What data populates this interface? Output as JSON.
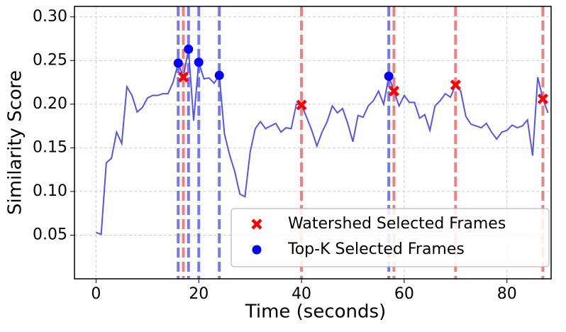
{
  "chart_data": {
    "type": "line",
    "xlabel": "Time (seconds)",
    "ylabel": "Similarity Score",
    "x": [
      0,
      1,
      2,
      3,
      4,
      5,
      6,
      7,
      8,
      9,
      10,
      11,
      12,
      13,
      14,
      15,
      16,
      17,
      18,
      19,
      20,
      21,
      22,
      23,
      24,
      25,
      26,
      27,
      28,
      29,
      30,
      31,
      32,
      33,
      34,
      35,
      36,
      37,
      38,
      39,
      40,
      41,
      42,
      43,
      44,
      45,
      46,
      47,
      48,
      49,
      50,
      51,
      52,
      53,
      54,
      55,
      56,
      57,
      58,
      59,
      60,
      61,
      62,
      63,
      64,
      65,
      66,
      67,
      68,
      69,
      70,
      71,
      72,
      73,
      74,
      75,
      76,
      77,
      78,
      79,
      80,
      81,
      82,
      83,
      84,
      85,
      86,
      87,
      88
    ],
    "series": [
      {
        "color": "#5555ee",
        "values": [
          0.053,
          0.051,
          0.133,
          0.138,
          0.168,
          0.155,
          0.22,
          0.21,
          0.191,
          0.196,
          0.207,
          0.21,
          0.21,
          0.212,
          0.212,
          0.225,
          0.247,
          0.231,
          0.263,
          0.181,
          0.248,
          0.229,
          0.23,
          0.224,
          0.233,
          0.166,
          0.142,
          0.123,
          0.097,
          0.094,
          0.145,
          0.172,
          0.18,
          0.172,
          0.175,
          0.178,
          0.168,
          0.173,
          0.172,
          0.2,
          0.199,
          0.185,
          0.17,
          0.152,
          0.168,
          0.18,
          0.198,
          0.19,
          0.195,
          0.178,
          0.157,
          0.187,
          0.185,
          0.198,
          0.204,
          0.215,
          0.2,
          0.232,
          0.215,
          0.198,
          0.21,
          0.202,
          0.202,
          0.184,
          0.188,
          0.17,
          0.198,
          0.204,
          0.212,
          0.208,
          0.222,
          0.215,
          0.186,
          0.177,
          0.175,
          0.173,
          0.178,
          0.168,
          0.16,
          0.168,
          0.17,
          0.176,
          0.173,
          0.175,
          0.182,
          0.141,
          0.231,
          0.206,
          0.19
        ]
      }
    ],
    "markers": [
      {
        "name": "Watershed Selected Frames",
        "color": "#ff0000",
        "line_color": "#f08080",
        "marker": "x",
        "x": [
          17,
          40,
          58,
          70,
          87
        ],
        "values": [
          0.231,
          0.199,
          0.215,
          0.222,
          0.206
        ]
      },
      {
        "name": "Top-K Selected Frames",
        "color": "#0000ff",
        "line_color": "#7777ee",
        "marker": "o",
        "x": [
          16,
          18,
          20,
          24,
          57
        ],
        "values": [
          0.247,
          0.263,
          0.248,
          0.233,
          0.232
        ]
      }
    ],
    "xlim": [
      -4.2,
      88.6
    ],
    "ylim": [
      0,
      0.312
    ],
    "xticks": [
      0,
      20,
      40,
      60,
      80
    ],
    "yticks": [
      0.05,
      {
        "value": 0.1,
        "label": "0.10"
      },
      0.15,
      {
        "value": 0.2,
        "label": "0.20"
      },
      0.25,
      {
        "value": 0.3,
        "label": "0.30"
      }
    ],
    "grid": true,
    "legend": "lower right"
  }
}
